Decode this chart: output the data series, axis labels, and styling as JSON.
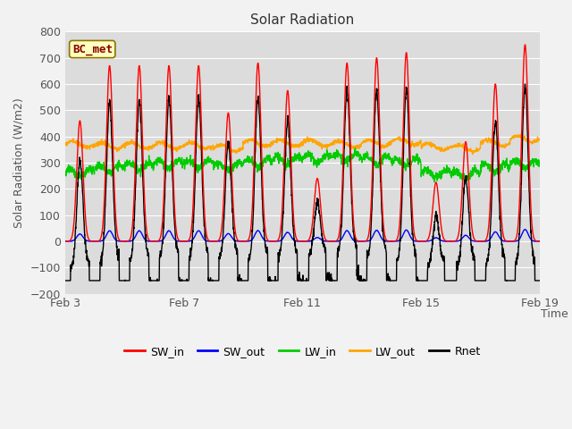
{
  "title": "Solar Radiation",
  "ylabel": "Solar Radiation (W/m2)",
  "xlabel": "Time",
  "ylim": [
    -200,
    800
  ],
  "yticks": [
    -200,
    -100,
    0,
    100,
    200,
    300,
    400,
    500,
    600,
    700,
    800
  ],
  "xtick_labels": [
    "Feb 3",
    "Feb 7",
    "Feb 11",
    "Feb 15",
    "Feb 19"
  ],
  "xtick_positions": [
    0,
    4,
    8,
    12,
    16
  ],
  "annotation_label": "BC_met",
  "annotation_color": "#8B0000",
  "annotation_bg": "#FFFFC0",
  "bg_color": "#DCDCDC",
  "plot_bg": "#DCDCDC",
  "grid_color": "#FFFFFF",
  "colors": {
    "SW_in": "#FF0000",
    "SW_out": "#0000FF",
    "LW_in": "#00CC00",
    "LW_out": "#FFA500",
    "Rnet": "#000000"
  },
  "linewidths": {
    "SW_in": 1.0,
    "SW_out": 1.0,
    "LW_in": 1.0,
    "LW_out": 1.0,
    "Rnet": 1.0
  },
  "num_days": 16,
  "pts_per_day": 144,
  "sw_in_peaks": [
    460,
    670,
    670,
    670,
    670,
    490,
    680,
    575,
    240,
    680,
    700,
    720,
    225,
    380,
    600,
    750
  ],
  "lw_in_base": [
    260,
    275,
    285,
    295,
    295,
    285,
    300,
    310,
    315,
    320,
    310,
    300,
    260,
    255,
    280,
    295
  ],
  "lw_out_base": [
    370,
    365,
    365,
    365,
    365,
    355,
    375,
    375,
    375,
    370,
    375,
    380,
    360,
    355,
    375,
    390
  ]
}
